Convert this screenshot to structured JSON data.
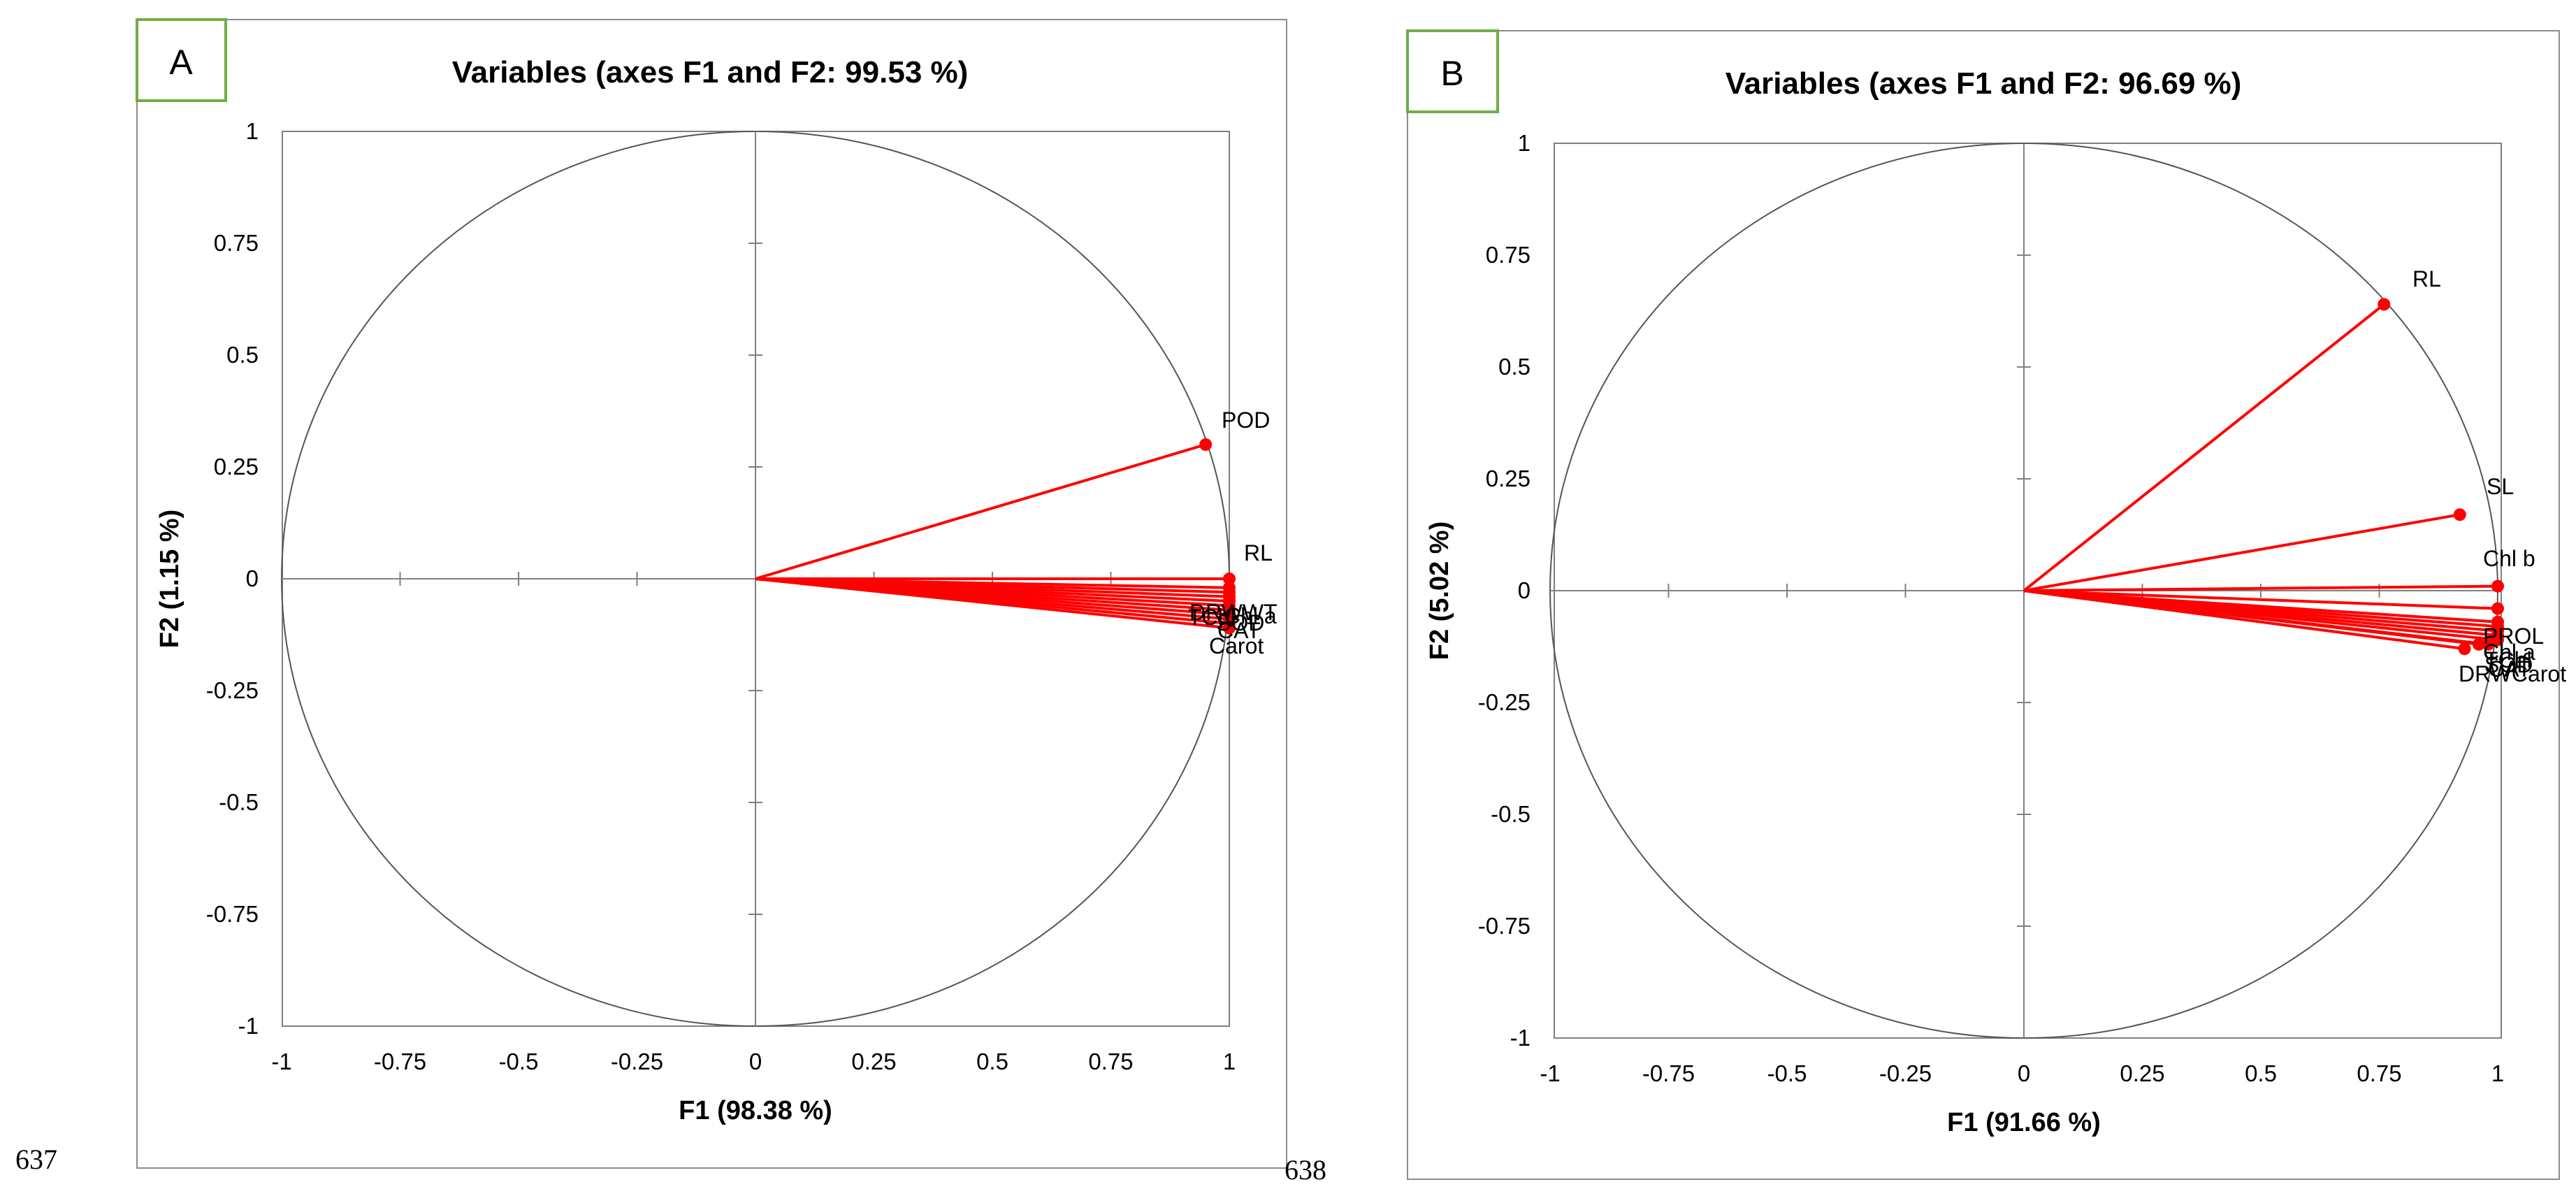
{
  "line_numbers": [
    "637",
    "638"
  ],
  "colors": {
    "vector": "#ff0000",
    "frame": "#8c8c8c",
    "badge_border": "#70ad47",
    "axis": "#808080"
  },
  "chart_data": [
    {
      "type": "scatter",
      "panel_label": "A",
      "title": "Variables (axes F1 and F2: 99.53 %)",
      "xlabel": "F1 (98.38 %)",
      "ylabel": "F2 (1.15 %)",
      "xlim": [
        -1,
        1
      ],
      "ylim": [
        -1,
        1
      ],
      "x_ticks": [
        "-1",
        "-0.75",
        "-0.5",
        "-0.25",
        "0",
        "0.25",
        "0.5",
        "0.75",
        "1"
      ],
      "y_ticks": [
        "1",
        "0.75",
        "0.5",
        "0.25",
        "0",
        "-0.25",
        "-0.5",
        "-0.75",
        "-1"
      ],
      "correlation_circle": true,
      "grid": false,
      "variables": [
        {
          "name": "POD",
          "x": 0.95,
          "y": 0.3
        },
        {
          "name": "RL",
          "x": 1.0,
          "y": 0.0
        },
        {
          "name": "WT",
          "x": 1.0,
          "y": -0.02
        },
        {
          "name": "DRW",
          "x": 1.0,
          "y": -0.03
        },
        {
          "name": "SL",
          "x": 1.0,
          "y": -0.04
        },
        {
          "name": "Chl a",
          "x": 1.0,
          "y": -0.05
        },
        {
          "name": "TChl",
          "x": 1.0,
          "y": -0.06
        },
        {
          "name": "PROL",
          "x": 1.0,
          "y": -0.07
        },
        {
          "name": "SOD",
          "x": 1.0,
          "y": -0.08
        },
        {
          "name": "Chl b",
          "x": 1.0,
          "y": -0.09
        },
        {
          "name": "CAT",
          "x": 1.0,
          "y": -0.1
        },
        {
          "name": "Carot",
          "x": 1.0,
          "y": -0.11
        }
      ],
      "visible_labels": [
        "POD",
        "RL",
        "DRWWT",
        "TChl",
        "Carot"
      ]
    },
    {
      "type": "scatter",
      "panel_label": "B",
      "title": "Variables (axes F1 and F2: 96.69 %)",
      "xlabel": "F1 (91.66 %)",
      "ylabel": "F2 (5.02 %)",
      "xlim": [
        -1,
        1
      ],
      "ylim": [
        -1,
        1
      ],
      "x_ticks": [
        "-1",
        "-0.75",
        "-0.5",
        "-0.25",
        "0",
        "0.25",
        "0.5",
        "0.75",
        "1"
      ],
      "y_ticks": [
        "1",
        "0.75",
        "0.5",
        "0.25",
        "0",
        "-0.25",
        "-0.5",
        "-0.75",
        "-1"
      ],
      "correlation_circle": true,
      "grid": false,
      "variables": [
        {
          "name": "RL",
          "x": 0.76,
          "y": 0.64
        },
        {
          "name": "SL",
          "x": 0.92,
          "y": 0.17
        },
        {
          "name": "Chl b",
          "x": 1.0,
          "y": 0.01
        },
        {
          "name": "WT",
          "x": 1.0,
          "y": -0.04
        },
        {
          "name": "PROL",
          "x": 1.0,
          "y": -0.07
        },
        {
          "name": "Chl a",
          "x": 1.0,
          "y": -0.08
        },
        {
          "name": "TChl",
          "x": 1.0,
          "y": -0.09
        },
        {
          "name": "SOD",
          "x": 1.0,
          "y": -0.1
        },
        {
          "name": "CAT",
          "x": 1.0,
          "y": -0.11
        },
        {
          "name": "POD",
          "x": 0.93,
          "y": -0.13
        },
        {
          "name": "DRW",
          "x": 0.96,
          "y": -0.12
        },
        {
          "name": "Carot",
          "x": 0.98,
          "y": -0.12
        }
      ],
      "visible_labels": [
        "RL",
        "SL",
        "Chl b",
        "PROL",
        "Chl a",
        "TChl",
        "DRWCarot"
      ]
    }
  ]
}
